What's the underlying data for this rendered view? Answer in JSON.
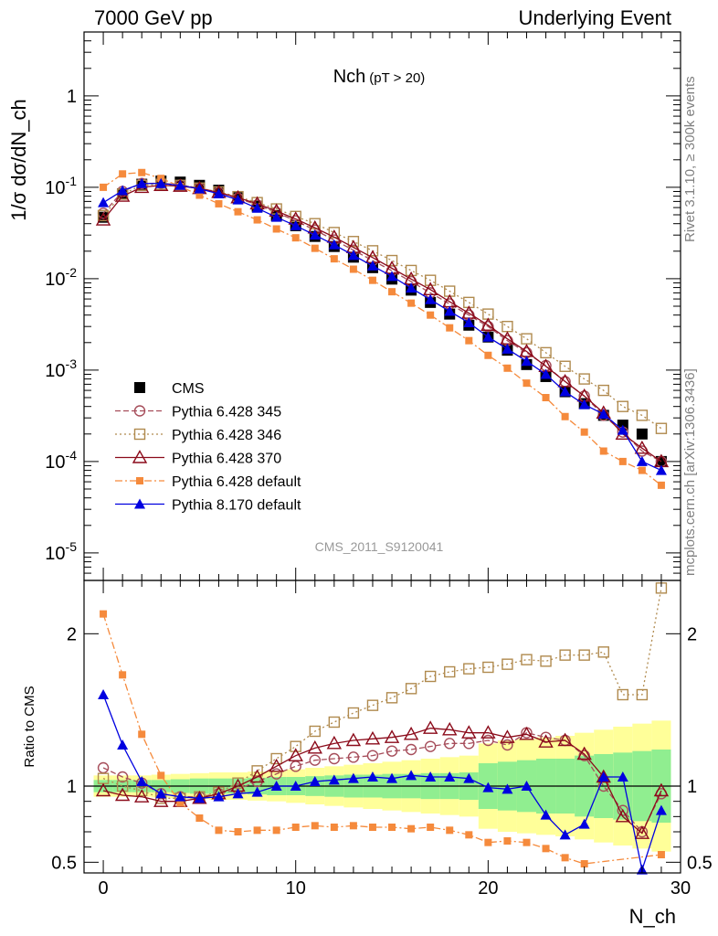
{
  "header": {
    "left": "7000 GeV pp",
    "right": "Underlying Event",
    "plot_title_main": "Nch",
    "plot_title_sub": "(pT > 20)",
    "analysis_id": "CMS_2011_S9120041",
    "side_version": "Rivet 3.1.10, ≥ 300k events",
    "side_site": "mcplots.cern.ch [arXiv:1306.3436]"
  },
  "colors": {
    "CMS": "#000000",
    "P345": "#a64d5a",
    "P346": "#b08a4e",
    "P370": "#8b0a1a",
    "P6def": "#f58a3c",
    "P8def": "#0000e0",
    "band_green": "#90ee90",
    "band_yellow": "#ffff99"
  },
  "chart_data": [
    {
      "type": "scatter",
      "panel": "main",
      "ylabel": "1/σ dσ/dN_ch",
      "yscale": "log",
      "ylim": [
        5e-06,
        5
      ],
      "xlim": [
        -1,
        30
      ],
      "yticks": [
        "10^-5",
        "10^-4",
        "10^-3",
        "10^-2",
        "10^-1",
        "1"
      ],
      "x": [
        0,
        1,
        2,
        3,
        4,
        5,
        6,
        7,
        8,
        9,
        10,
        11,
        12,
        13,
        14,
        15,
        16,
        17,
        18,
        19,
        20,
        21,
        22,
        23,
        24,
        25,
        26,
        27,
        28,
        29
      ],
      "series": [
        {
          "name": "CMS",
          "key": "CMS",
          "marker": "square",
          "line": "none",
          "values": [
            0.047,
            0.085,
            0.108,
            0.117,
            0.114,
            0.105,
            0.093,
            0.077,
            0.062,
            0.049,
            0.038,
            0.029,
            0.0225,
            0.0172,
            0.0132,
            0.0099,
            0.0075,
            0.0055,
            0.0041,
            0.0031,
            0.0023,
            0.00165,
            0.00115,
            0.00085,
            0.00058,
            0.00043,
            0.00032,
            0.00025,
            0.0002,
            0.0001
          ]
        },
        {
          "name": "Pythia 6.428 345",
          "key": "P345",
          "marker": "circle-open",
          "line": "dashed",
          "values": [
            0.052,
            0.09,
            0.11,
            0.111,
            0.106,
            0.098,
            0.088,
            0.076,
            0.064,
            0.053,
            0.043,
            0.034,
            0.0265,
            0.0205,
            0.0158,
            0.0122,
            0.0093,
            0.007,
            0.0053,
            0.004,
            0.003,
            0.0021,
            0.00155,
            0.00112,
            0.00075,
            0.00052,
            0.00032,
            0.00021,
            0.00013,
            0.0001
          ]
        },
        {
          "name": "Pythia 6.428 346",
          "key": "P346",
          "marker": "square-open",
          "line": "dotted",
          "values": [
            0.049,
            0.084,
            0.105,
            0.108,
            0.105,
            0.098,
            0.089,
            0.079,
            0.068,
            0.058,
            0.048,
            0.04,
            0.032,
            0.0255,
            0.0202,
            0.0158,
            0.0123,
            0.0096,
            0.0073,
            0.0055,
            0.0041,
            0.003,
            0.0022,
            0.00155,
            0.0011,
            0.0008,
            0.0006,
            0.0004,
            0.00032,
            0.00023
          ]
        },
        {
          "name": "Pythia 6.428 370",
          "key": "P370",
          "marker": "triangle-open",
          "line": "solid",
          "values": [
            0.044,
            0.08,
            0.1,
            0.105,
            0.103,
            0.097,
            0.088,
            0.077,
            0.066,
            0.055,
            0.045,
            0.036,
            0.0285,
            0.022,
            0.017,
            0.013,
            0.0099,
            0.0076,
            0.0056,
            0.0042,
            0.0031,
            0.0022,
            0.0016,
            0.0011,
            0.00075,
            0.00052,
            0.00034,
            0.0002,
            0.00014,
            0.0001
          ]
        },
        {
          "name": "Pythia 6.428 default",
          "key": "P6def",
          "marker": "square-small",
          "line": "dashdot",
          "values": [
            0.1,
            0.14,
            0.145,
            0.125,
            0.102,
            0.082,
            0.066,
            0.054,
            0.044,
            0.035,
            0.028,
            0.0215,
            0.0165,
            0.0127,
            0.0096,
            0.0072,
            0.0054,
            0.004,
            0.0029,
            0.0021,
            0.00145,
            0.00105,
            0.00072,
            0.0005,
            0.00031,
            0.00021,
            0.00013,
            0.0001,
            8e-05,
            5.5e-05
          ]
        },
        {
          "name": "Pythia 8.170 default",
          "key": "P8def",
          "marker": "triangle",
          "line": "solid",
          "values": [
            0.068,
            0.092,
            0.11,
            0.11,
            0.105,
            0.096,
            0.085,
            0.073,
            0.059,
            0.047,
            0.038,
            0.03,
            0.0235,
            0.018,
            0.0138,
            0.0106,
            0.0079,
            0.0059,
            0.0044,
            0.0033,
            0.0023,
            0.0017,
            0.00125,
            0.0009,
            0.00058,
            0.00042,
            0.00033,
            0.00022,
            0.0001,
            8e-05
          ]
        }
      ]
    },
    {
      "type": "scatter",
      "panel": "ratio",
      "ylabel": "Ratio to CMS",
      "xlabel": "N_ch",
      "ylim": [
        0.43,
        2.35
      ],
      "xlim": [
        -1,
        30
      ],
      "yticks": [
        0.5,
        1,
        2
      ],
      "xticks": [
        0,
        10,
        20,
        30
      ],
      "x": [
        0,
        1,
        2,
        3,
        4,
        5,
        6,
        7,
        8,
        9,
        10,
        11,
        12,
        13,
        14,
        15,
        16,
        17,
        18,
        19,
        20,
        21,
        22,
        23,
        24,
        25,
        26,
        27,
        28,
        29
      ],
      "bands": {
        "green": [
          0.04,
          0.04,
          0.04,
          0.04,
          0.045,
          0.05,
          0.05,
          0.05,
          0.055,
          0.06,
          0.06,
          0.065,
          0.07,
          0.075,
          0.075,
          0.08,
          0.08,
          0.085,
          0.085,
          0.09,
          0.15,
          0.16,
          0.17,
          0.18,
          0.18,
          0.2,
          0.21,
          0.22,
          0.23,
          0.24
        ],
        "yellow": [
          0.07,
          0.07,
          0.07,
          0.075,
          0.08,
          0.085,
          0.09,
          0.09,
          0.095,
          0.1,
          0.11,
          0.12,
          0.13,
          0.14,
          0.15,
          0.16,
          0.17,
          0.18,
          0.19,
          0.2,
          0.28,
          0.3,
          0.31,
          0.32,
          0.33,
          0.35,
          0.37,
          0.39,
          0.41,
          0.43
        ]
      },
      "series": [
        {
          "name": "Pythia 6.428 345",
          "key": "P345",
          "marker": "circle-open",
          "line": "dashed",
          "values": [
            1.12,
            1.06,
            1.02,
            0.95,
            0.93,
            0.93,
            0.95,
            0.98,
            1.03,
            1.08,
            1.13,
            1.17,
            1.18,
            1.19,
            1.2,
            1.23,
            1.24,
            1.26,
            1.28,
            1.28,
            1.3,
            1.27,
            1.35,
            1.32,
            1.3,
            1.2,
            1.0,
            0.84,
            0.7,
            0.95
          ]
        },
        {
          "name": "Pythia 6.428 346",
          "key": "P346",
          "marker": "square-open",
          "line": "dotted",
          "values": [
            1.05,
            1.0,
            0.97,
            0.92,
            0.92,
            0.93,
            0.96,
            1.02,
            1.1,
            1.18,
            1.26,
            1.36,
            1.42,
            1.48,
            1.53,
            1.58,
            1.64,
            1.72,
            1.75,
            1.77,
            1.78,
            1.8,
            1.83,
            1.82,
            1.86,
            1.86,
            1.88,
            1.6,
            1.6,
            2.3
          ]
        },
        {
          "name": "Pythia 6.428 370",
          "key": "P370",
          "marker": "triangle-open",
          "line": "solid",
          "values": [
            0.97,
            0.94,
            0.93,
            0.9,
            0.9,
            0.92,
            0.95,
            1.0,
            1.06,
            1.13,
            1.2,
            1.25,
            1.28,
            1.3,
            1.31,
            1.32,
            1.34,
            1.38,
            1.37,
            1.35,
            1.35,
            1.32,
            1.34,
            1.29,
            1.3,
            1.21,
            1.06,
            0.8,
            0.69,
            0.97
          ]
        },
        {
          "name": "Pythia 6.428 default",
          "key": "P6def",
          "marker": "square-small",
          "line": "dashdot",
          "values": [
            2.13,
            1.73,
            1.34,
            1.07,
            0.89,
            0.79,
            0.71,
            0.7,
            0.71,
            0.71,
            0.73,
            0.74,
            0.73,
            0.74,
            0.73,
            0.73,
            0.72,
            0.73,
            0.71,
            0.68,
            0.63,
            0.64,
            0.63,
            0.59,
            0.53,
            0.49,
            0.41,
            0.4,
            0.4,
            0.55
          ]
        },
        {
          "name": "Pythia 8.170 default",
          "key": "P8def",
          "marker": "triangle",
          "line": "solid",
          "values": [
            1.6,
            1.27,
            1.03,
            0.95,
            0.93,
            0.92,
            0.93,
            0.95,
            0.96,
            1.0,
            1.0,
            1.03,
            1.04,
            1.05,
            1.06,
            1.05,
            1.07,
            1.06,
            1.06,
            1.05,
            0.99,
            0.98,
            1.0,
            0.81,
            0.68,
            0.75,
            1.06,
            1.06,
            0.45,
            0.84
          ]
        }
      ]
    }
  ]
}
